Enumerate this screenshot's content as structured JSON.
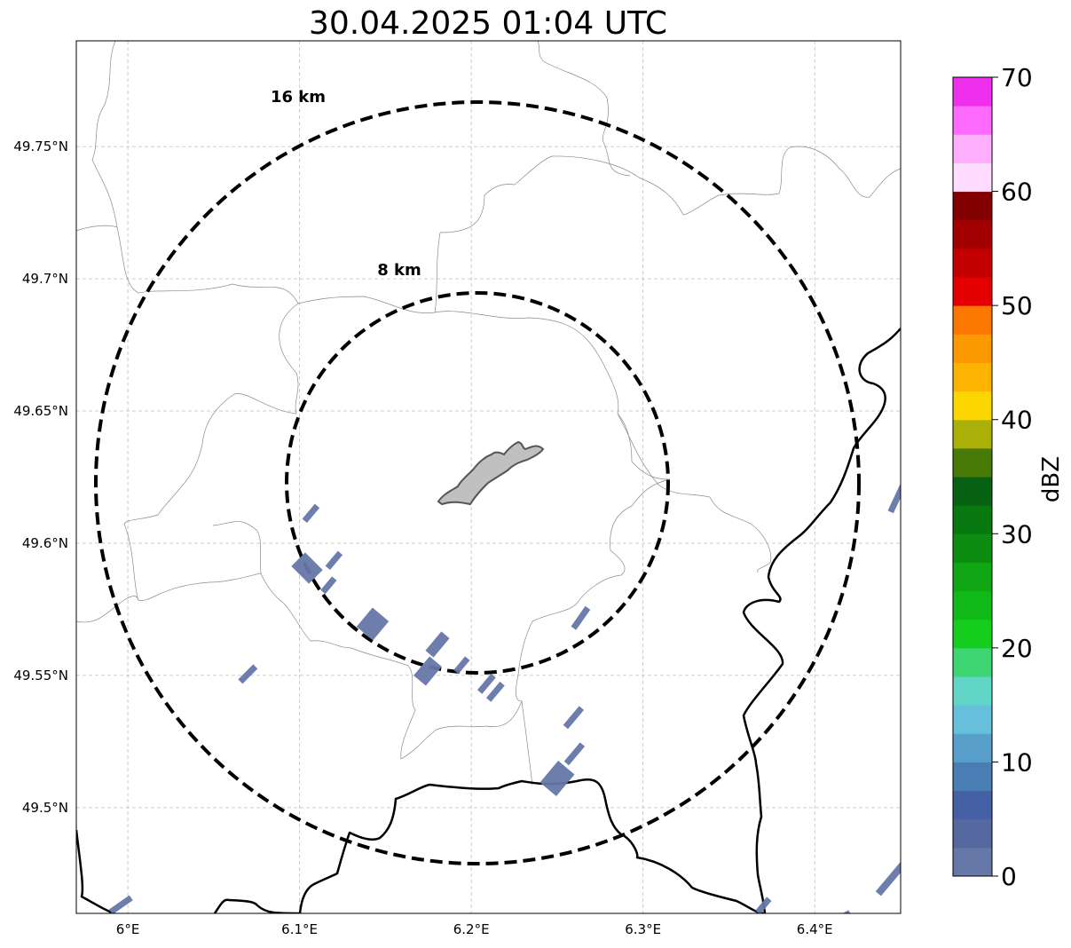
{
  "title": "30.04.2025 01:04 UTC",
  "map": {
    "lon_range": [
      5.97,
      6.45
    ],
    "lat_range": [
      49.46,
      49.79
    ],
    "lon_ticks": [
      {
        "value": 6.0,
        "label": "6°E"
      },
      {
        "value": 6.1,
        "label": "6.1°E"
      },
      {
        "value": 6.2,
        "label": "6.2°E"
      },
      {
        "value": 6.3,
        "label": "6.3°E"
      },
      {
        "value": 6.4,
        "label": "6.4°E"
      }
    ],
    "lat_ticks": [
      {
        "value": 49.5,
        "label": "49.5°N"
      },
      {
        "value": 49.55,
        "label": "49.55°N"
      },
      {
        "value": 49.6,
        "label": "49.6°N"
      },
      {
        "value": 49.65,
        "label": "49.65°N"
      },
      {
        "value": 49.7,
        "label": "49.7°N"
      },
      {
        "value": 49.75,
        "label": "49.75°N"
      }
    ],
    "grid": true,
    "center": {
      "lon": 6.2,
      "lat": 49.623
    },
    "range_rings": [
      {
        "label": "8 km",
        "radius_km": 8
      },
      {
        "label": "16 km",
        "radius_km": 16
      }
    ]
  },
  "colorbar": {
    "label": "dBZ",
    "min": 0,
    "max": 70,
    "tick_labels": [
      "0",
      "10",
      "20",
      "30",
      "40",
      "50",
      "60",
      "70"
    ],
    "colors": [
      "#6678a8",
      "#5568a0",
      "#4660a6",
      "#4a7db4",
      "#579fca",
      "#66c0dc",
      "#62d6c6",
      "#3ed672",
      "#14cd1c",
      "#10b818",
      "#10a614",
      "#0c8c10",
      "#087810",
      "#066212",
      "#487a08",
      "#aab008",
      "#fcd600",
      "#fcb400",
      "#fc9800",
      "#fc7800",
      "#e40000",
      "#c20000",
      "#a20000",
      "#820000",
      "#ffdcff",
      "#ffaefe",
      "#fe6afe",
      "#ee30ee"
    ]
  }
}
